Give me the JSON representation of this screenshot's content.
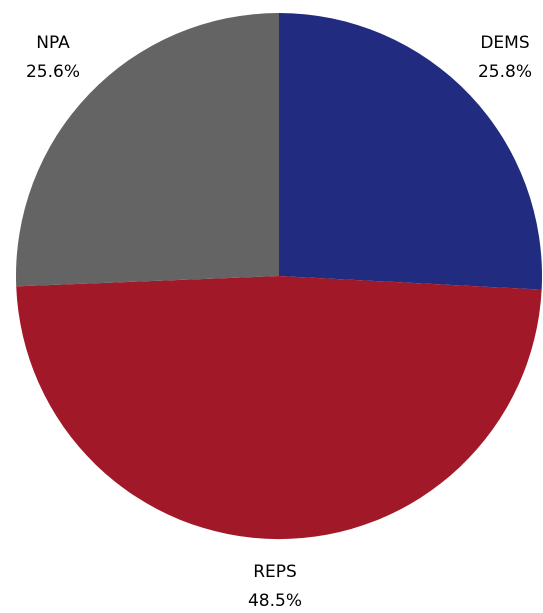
{
  "chart_data": {
    "type": "pie",
    "title": "",
    "slices": [
      {
        "name": "DEMS",
        "value": 25.8,
        "label": "25.8%",
        "color": "#212b7f"
      },
      {
        "name": "REPS",
        "value": 48.5,
        "label": "48.5%",
        "color": "#a11928"
      },
      {
        "name": "NPA",
        "value": 25.6,
        "label": "25.6%",
        "color": "#646464"
      }
    ],
    "start_angle_deg": 0,
    "direction": "clockwise",
    "legend": "none"
  }
}
